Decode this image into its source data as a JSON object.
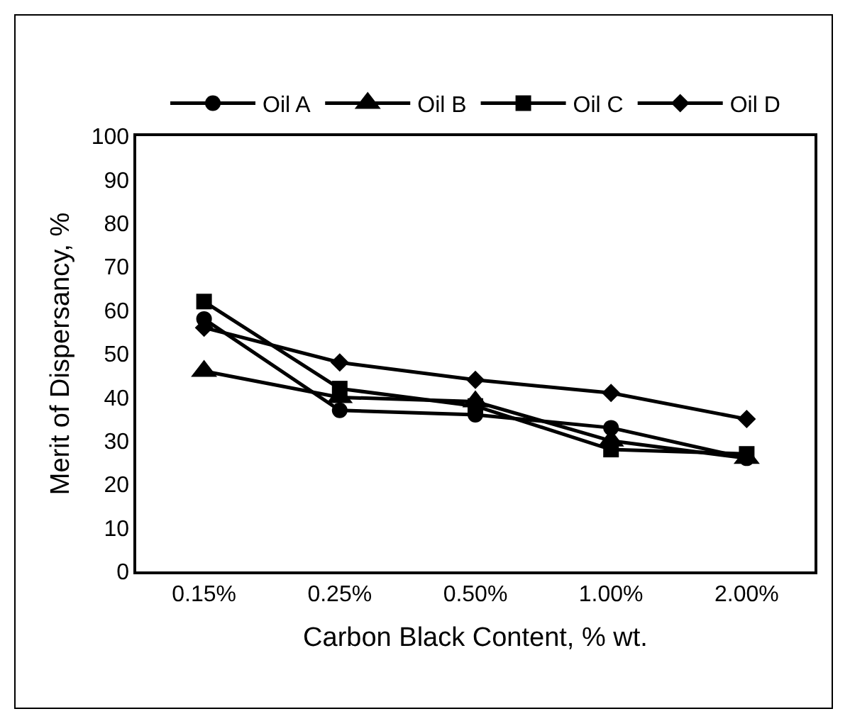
{
  "chart_data": {
    "type": "line",
    "xlabel": "Carbon Black Content, % wt.",
    "ylabel": "Merit of Dispersancy, %",
    "categories": [
      "0.15%",
      "0.25%",
      "0.50%",
      "1.00%",
      "2.00%"
    ],
    "series": [
      {
        "name": "Oil A",
        "color": "#000000",
        "marker": "circle",
        "values": [
          58,
          37,
          36,
          33,
          26
        ]
      },
      {
        "name": "Oil B",
        "color": "#000000",
        "marker": "triangle",
        "values": [
          46,
          40,
          39,
          30,
          26
        ]
      },
      {
        "name": "Oil C",
        "color": "#000000",
        "marker": "square",
        "values": [
          62,
          42,
          38,
          28,
          27
        ]
      },
      {
        "name": "Oil D",
        "color": "#000000",
        "marker": "diamond",
        "values": [
          56,
          48,
          44,
          41,
          35
        ]
      }
    ],
    "ylim": [
      0,
      100
    ],
    "yticks": [
      0,
      10,
      20,
      30,
      40,
      50,
      60,
      70,
      80,
      90,
      100
    ],
    "grid": false,
    "legend": "top",
    "line_style": "solid"
  }
}
